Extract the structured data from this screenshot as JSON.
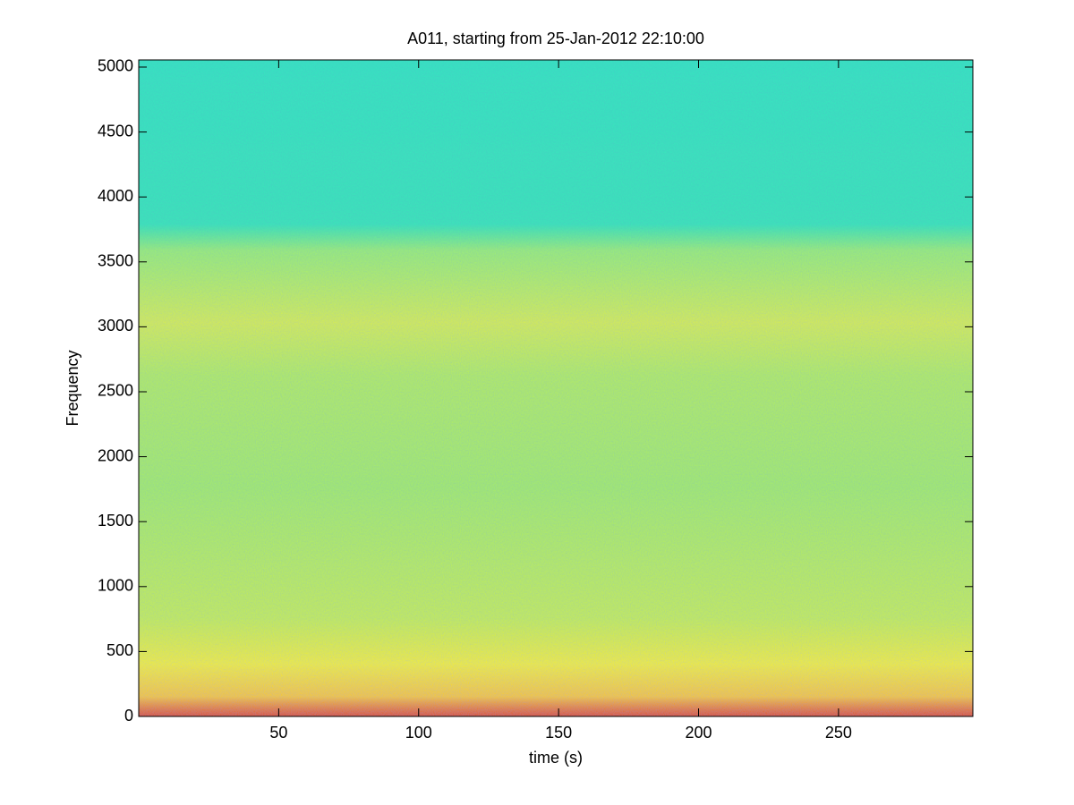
{
  "chart_data": {
    "type": "spectrogram",
    "title": "A011, starting from 25-Jan-2012 22:10:00",
    "xlabel": "time (s)",
    "ylabel": "Frequency",
    "xlim": [
      0,
      298
    ],
    "ylim": [
      0,
      5055
    ],
    "xticks": [
      50,
      100,
      150,
      200,
      250
    ],
    "yticks": [
      0,
      500,
      1000,
      1500,
      2000,
      2500,
      3000,
      3500,
      4000,
      4500,
      5000
    ]
  }
}
